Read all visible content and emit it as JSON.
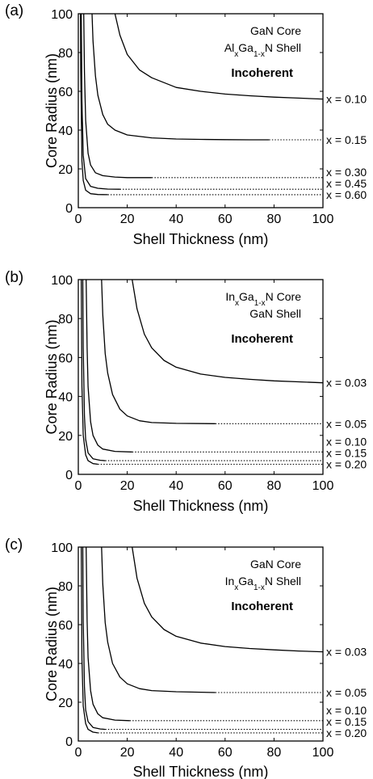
{
  "chart_data": [
    {
      "type": "line",
      "panel_label": "(a)",
      "xlabel": "Shell Thickness (nm)",
      "ylabel": "Core Radius (nm)",
      "xlim": [
        0,
        100
      ],
      "ylim": [
        0,
        100
      ],
      "xticks": [
        0,
        20,
        40,
        60,
        80,
        100
      ],
      "yticks": [
        0,
        20,
        40,
        60,
        80,
        100
      ],
      "annotations": {
        "line1": {
          "pre": "GaN Core",
          "sub": "",
          "post": ""
        },
        "line2": {
          "pre": "Al",
          "sub": "x",
          "mid": "Ga",
          "sub2": "1-x",
          "post": "N Shell"
        },
        "region": "Incoherent"
      },
      "series": [
        {
          "label": "x = 0.10",
          "x": [
            15,
            17,
            20,
            25,
            30,
            40,
            50,
            60,
            70,
            80,
            90,
            100
          ],
          "y": [
            100,
            89,
            79,
            71,
            67,
            62,
            60,
            58.6,
            57.7,
            57.0,
            56.5,
            56.0
          ],
          "dotted_from": null
        },
        {
          "label": "x = 0.15",
          "x": [
            5.6,
            6,
            7,
            8,
            10,
            12,
            15,
            20,
            30,
            40,
            50,
            60,
            70,
            78,
            100
          ],
          "y": [
            100,
            86,
            68,
            58,
            48,
            43,
            40,
            37.5,
            36,
            35.4,
            35.2,
            35.1,
            35.0,
            35.0,
            35.0
          ],
          "dotted_from": 78
        },
        {
          "label": "x = 0.30",
          "x": [
            2.2,
            2.5,
            3,
            4,
            5,
            7,
            10,
            15,
            20,
            30,
            100
          ],
          "y": [
            100,
            70,
            45,
            28,
            22,
            18,
            16.5,
            15.8,
            15.5,
            15.5,
            15.5
          ],
          "dotted_from": 30
        },
        {
          "label": "x = 0.45",
          "x": [
            1.2,
            1.5,
            2,
            3,
            5,
            8,
            12,
            17,
            100
          ],
          "y": [
            100,
            55,
            27,
            15,
            11,
            10,
            9.6,
            9.5,
            9.5
          ],
          "dotted_from": 17
        },
        {
          "label": "x = 0.60",
          "x": [
            0.9,
            1,
            1.5,
            2,
            3,
            5,
            8,
            12,
            100
          ],
          "y": [
            100,
            70,
            24,
            14,
            9,
            7.2,
            6.8,
            6.7,
            6.7
          ],
          "dotted_from": 12
        }
      ]
    },
    {
      "type": "line",
      "panel_label": "(b)",
      "xlabel": "Shell Thickness (nm)",
      "ylabel": "Core Radius (nm)",
      "xlim": [
        0,
        100
      ],
      "ylim": [
        0,
        100
      ],
      "xticks": [
        0,
        20,
        40,
        60,
        80,
        100
      ],
      "yticks": [
        0,
        20,
        40,
        60,
        80,
        100
      ],
      "annotations": {
        "line1": {
          "pre": "In",
          "sub": "x",
          "mid": "Ga",
          "sub2": "1-x",
          "post": "N Core"
        },
        "line2": {
          "pre": "GaN Shell",
          "sub": "",
          "post": ""
        },
        "region": "Incoherent"
      },
      "series": [
        {
          "label": "x = 0.03",
          "x": [
            22,
            24,
            27,
            30,
            35,
            40,
            50,
            60,
            70,
            80,
            90,
            100
          ],
          "y": [
            100,
            85,
            72,
            65,
            58.5,
            55,
            51.5,
            49.8,
            48.8,
            48.0,
            47.5,
            47.0
          ],
          "dotted_from": null
        },
        {
          "label": "x = 0.05",
          "x": [
            9.5,
            10,
            11,
            12,
            14,
            17,
            20,
            25,
            30,
            40,
            56,
            100
          ],
          "y": [
            100,
            82,
            62,
            52,
            41,
            33.5,
            30,
            27.5,
            26.6,
            26.2,
            26.0,
            26.0
          ],
          "dotted_from": 56
        },
        {
          "label": "x = 0.10",
          "x": [
            3.2,
            3.6,
            4,
            5,
            6,
            8,
            10,
            15,
            22,
            100
          ],
          "y": [
            100,
            65,
            45,
            27,
            20,
            15,
            13,
            11.8,
            11.5,
            11.5
          ],
          "dotted_from": 22
        },
        {
          "label": "x = 0.15",
          "x": [
            1.8,
            2,
            2.5,
            3,
            4,
            6,
            9,
            11,
            100
          ],
          "y": [
            100,
            65,
            30,
            18,
            11,
            8,
            7.2,
            7.0,
            7.0
          ],
          "dotted_from": 11
        },
        {
          "label": "x = 0.20",
          "x": [
            1.2,
            1.5,
            2,
            3,
            4,
            6,
            8,
            100
          ],
          "y": [
            100,
            45,
            20,
            10,
            7,
            5.5,
            5.2,
            5.2
          ],
          "dotted_from": 8
        }
      ]
    },
    {
      "type": "line",
      "panel_label": "(c)",
      "xlabel": "Shell Thickness (nm)",
      "ylabel": "Core Radius (nm)",
      "xlim": [
        0,
        100
      ],
      "ylim": [
        0,
        100
      ],
      "xticks": [
        0,
        20,
        40,
        60,
        80,
        100
      ],
      "yticks": [
        0,
        20,
        40,
        60,
        80,
        100
      ],
      "annotations": {
        "line1": {
          "pre": "GaN Core",
          "sub": "",
          "post": ""
        },
        "line2": {
          "pre": "In",
          "sub": "x",
          "mid": "Ga",
          "sub2": "1-x",
          "post": "N Shell"
        },
        "region": "Incoherent"
      },
      "series": [
        {
          "label": "x = 0.03",
          "x": [
            22,
            24,
            27,
            30,
            35,
            40,
            50,
            60,
            70,
            80,
            90,
            100
          ],
          "y": [
            100,
            84,
            71,
            64,
            57.5,
            54,
            50.5,
            48.7,
            47.7,
            47.0,
            46.4,
            46.0
          ],
          "dotted_from": null
        },
        {
          "label": "x = 0.05",
          "x": [
            9.5,
            10,
            11,
            12,
            14,
            17,
            20,
            25,
            30,
            40,
            56,
            100
          ],
          "y": [
            100,
            81,
            61,
            51,
            40,
            33,
            29.5,
            27,
            26,
            25.4,
            25.0,
            25.0
          ],
          "dotted_from": 56
        },
        {
          "label": "x = 0.10",
          "x": [
            3.2,
            3.6,
            4,
            5,
            6,
            8,
            10,
            15,
            21,
            100
          ],
          "y": [
            100,
            62,
            43,
            26,
            19,
            14,
            12,
            10.8,
            10.5,
            10.5
          ],
          "dotted_from": 21
        },
        {
          "label": "x = 0.15",
          "x": [
            1.8,
            2,
            2.5,
            3,
            4,
            6,
            9,
            11,
            100
          ],
          "y": [
            100,
            62,
            28,
            16,
            10,
            7,
            6.2,
            6.0,
            6.0
          ],
          "dotted_from": 11
        },
        {
          "label": "x = 0.20",
          "x": [
            1.2,
            1.5,
            2,
            3,
            4,
            6,
            8,
            100
          ],
          "y": [
            100,
            42,
            18,
            9,
            6,
            4.6,
            4.2,
            4.2
          ],
          "dotted_from": 8
        }
      ]
    }
  ]
}
